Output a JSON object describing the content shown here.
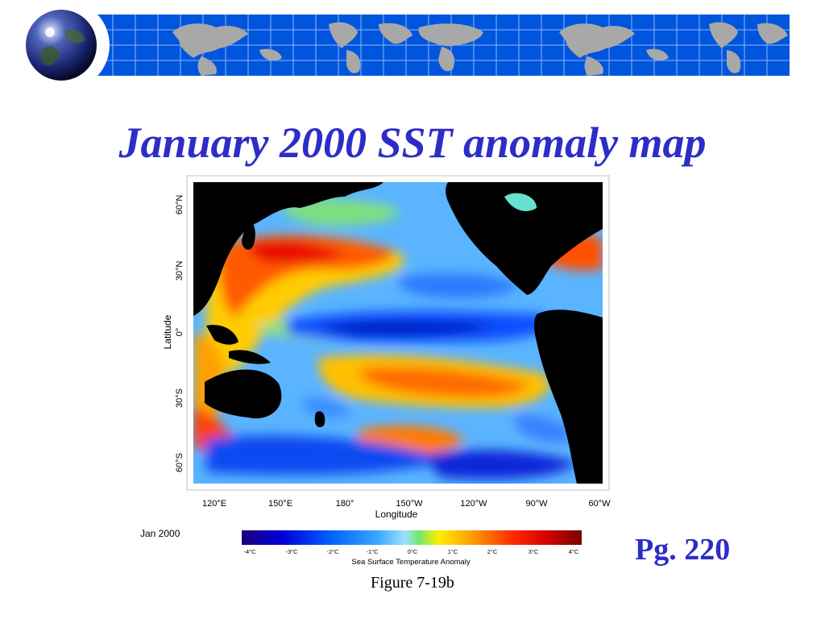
{
  "slide": {
    "title": "January 2000 SST anomaly map",
    "page_ref": "Pg. 220",
    "figure_caption": "Figure 7-19b"
  },
  "map": {
    "latitude_label": "Latitude",
    "longitude_label": "Longitude",
    "lat_ticks": [
      "60°N",
      "30°N",
      "0°",
      "30°S",
      "60°S"
    ],
    "lon_ticks": [
      "120°E",
      "150°E",
      "180°",
      "150°W",
      "120°W",
      "90°W",
      "60°W"
    ],
    "date_label": "Jan 2000"
  },
  "legend": {
    "title": "Sea Surface Temperature Anomaly",
    "ticks": [
      "-4°C",
      "-3°C",
      "-2°C",
      "-1°C",
      "0°C",
      "1°C",
      "2°C",
      "3°C",
      "4°C"
    ],
    "range": [
      -4,
      4
    ],
    "colors": [
      "#1a007a",
      "#0000d8",
      "#0060ff",
      "#38a8ff",
      "#9de0ff",
      "#70e870",
      "#ffee00",
      "#ff9a00",
      "#ff2800",
      "#d40000",
      "#780000"
    ]
  },
  "colors": {
    "title": "#2d2dc8",
    "banner": "#0055dd",
    "land": "#000000"
  }
}
